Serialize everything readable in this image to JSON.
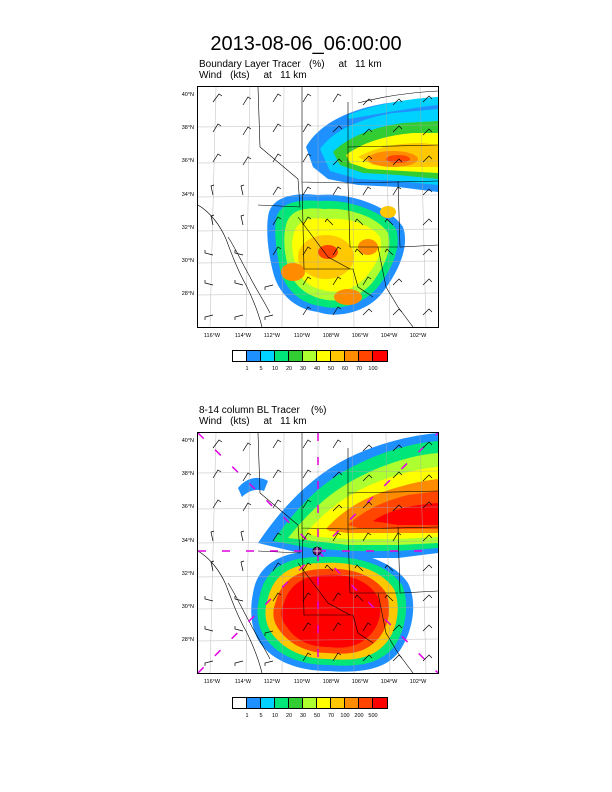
{
  "page": {
    "title": "2013-08-06_06:00:00"
  },
  "panels": [
    {
      "title_line1": "Boundary Layer Tracer   (%)     at   11 km",
      "title_line2": "Wind   (kts)     at   11 km",
      "lat_labels": [
        "40°N",
        "38°N",
        "36°N",
        "34°N",
        "32°N",
        "30°N",
        "28°N"
      ],
      "lon_labels": [
        "116°W",
        "114°W",
        "112°W",
        "110°W",
        "108°W",
        "106°W",
        "104°W",
        "102°W"
      ],
      "legend_labels": [
        "1",
        "5",
        "10",
        "20",
        "30",
        "40",
        "50",
        "60",
        "70",
        "100"
      ],
      "legend_colors": [
        "#ffffff",
        "#1e90ff",
        "#00d2ff",
        "#00e678",
        "#32cd32",
        "#adff2f",
        "#ffff00",
        "#ffc800",
        "#ff8c00",
        "#ff4500",
        "#ff0000"
      ]
    },
    {
      "title_line1": "8-14 column BL Tracer    (%)",
      "title_line2": "Wind   (kts)     at   11 km",
      "lat_labels": [
        "40°N",
        "38°N",
        "36°N",
        "34°N",
        "32°N",
        "30°N",
        "28°N"
      ],
      "lon_labels": [
        "116°W",
        "114°W",
        "112°W",
        "110°W",
        "108°W",
        "106°W",
        "104°W",
        "102°W"
      ],
      "legend_labels": [
        "1",
        "5",
        "10",
        "20",
        "30",
        "50",
        "70",
        "100",
        "200",
        "500"
      ],
      "legend_colors": [
        "#ffffff",
        "#1e90ff",
        "#00d2ff",
        "#00e678",
        "#32cd32",
        "#adff2f",
        "#ffff00",
        "#ffc800",
        "#ff8c00",
        "#ff4500",
        "#ff0000"
      ],
      "marker_icon": "cross-circle-marker"
    }
  ]
}
